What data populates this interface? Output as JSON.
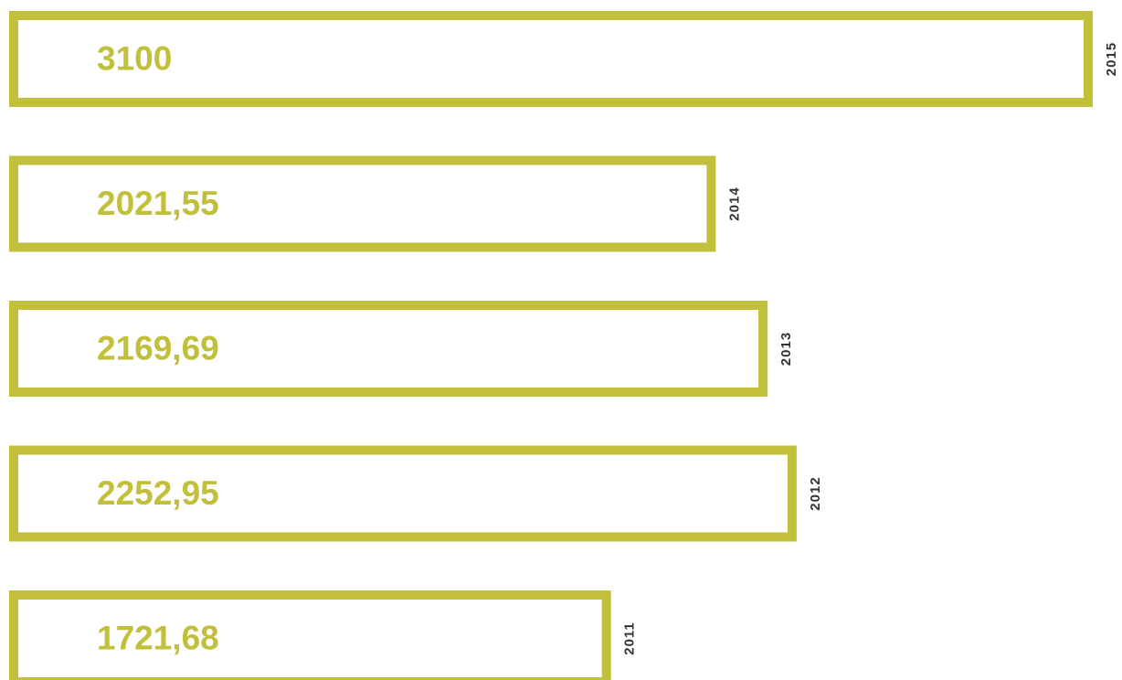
{
  "chart_data": {
    "type": "bar",
    "orientation": "horizontal",
    "categories": [
      "2015",
      "2014",
      "2013",
      "2012",
      "2011"
    ],
    "values": [
      3100,
      2021.55,
      2169.69,
      2252.95,
      1721.68
    ],
    "value_labels": [
      "3100",
      "2021,55",
      "2169,69",
      "2252,95",
      "1721,68"
    ],
    "color": "#c2c03a"
  }
}
